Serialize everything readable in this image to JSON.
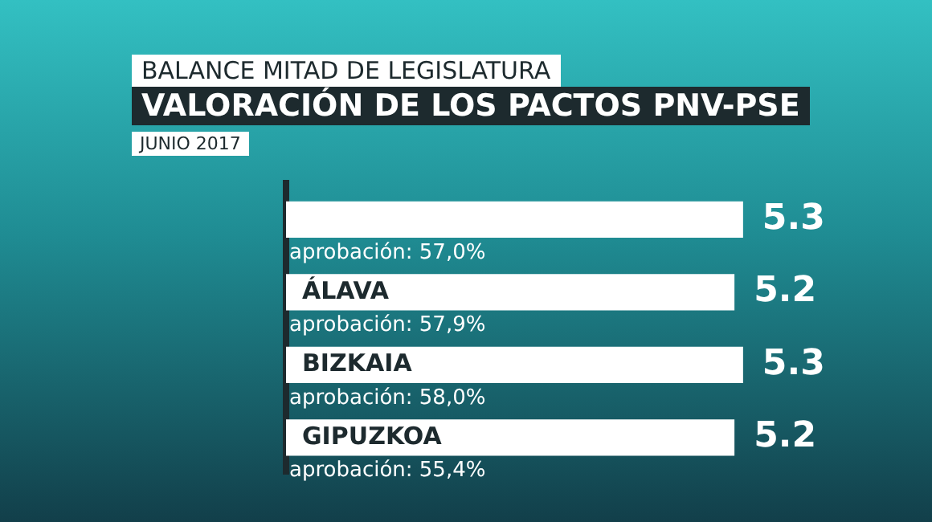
{
  "chart_data": {
    "type": "bar",
    "orientation": "horizontal",
    "title": "BALANCE MITAD DE LEGISLATURA",
    "subtitle": "VALORACIÓN DE LOS PACTOS PNV-PSE",
    "categories": [
      null,
      "ÁLAVA",
      "BIZKAIA",
      "GIPUZKOA"
    ],
    "values": [
      5.3,
      5.2,
      5.3,
      5.2
    ],
    "color": "#ffffff",
    "tick_labels": "y",
    "grid": false,
    "data_labels": true,
    "annotations": [
      "JUNIO 2017",
      "aprobación: 57,0%",
      "aprobación: 57,9%",
      "aprobación: 58,0%",
      "aprobación: 55,4%"
    ]
  }
}
